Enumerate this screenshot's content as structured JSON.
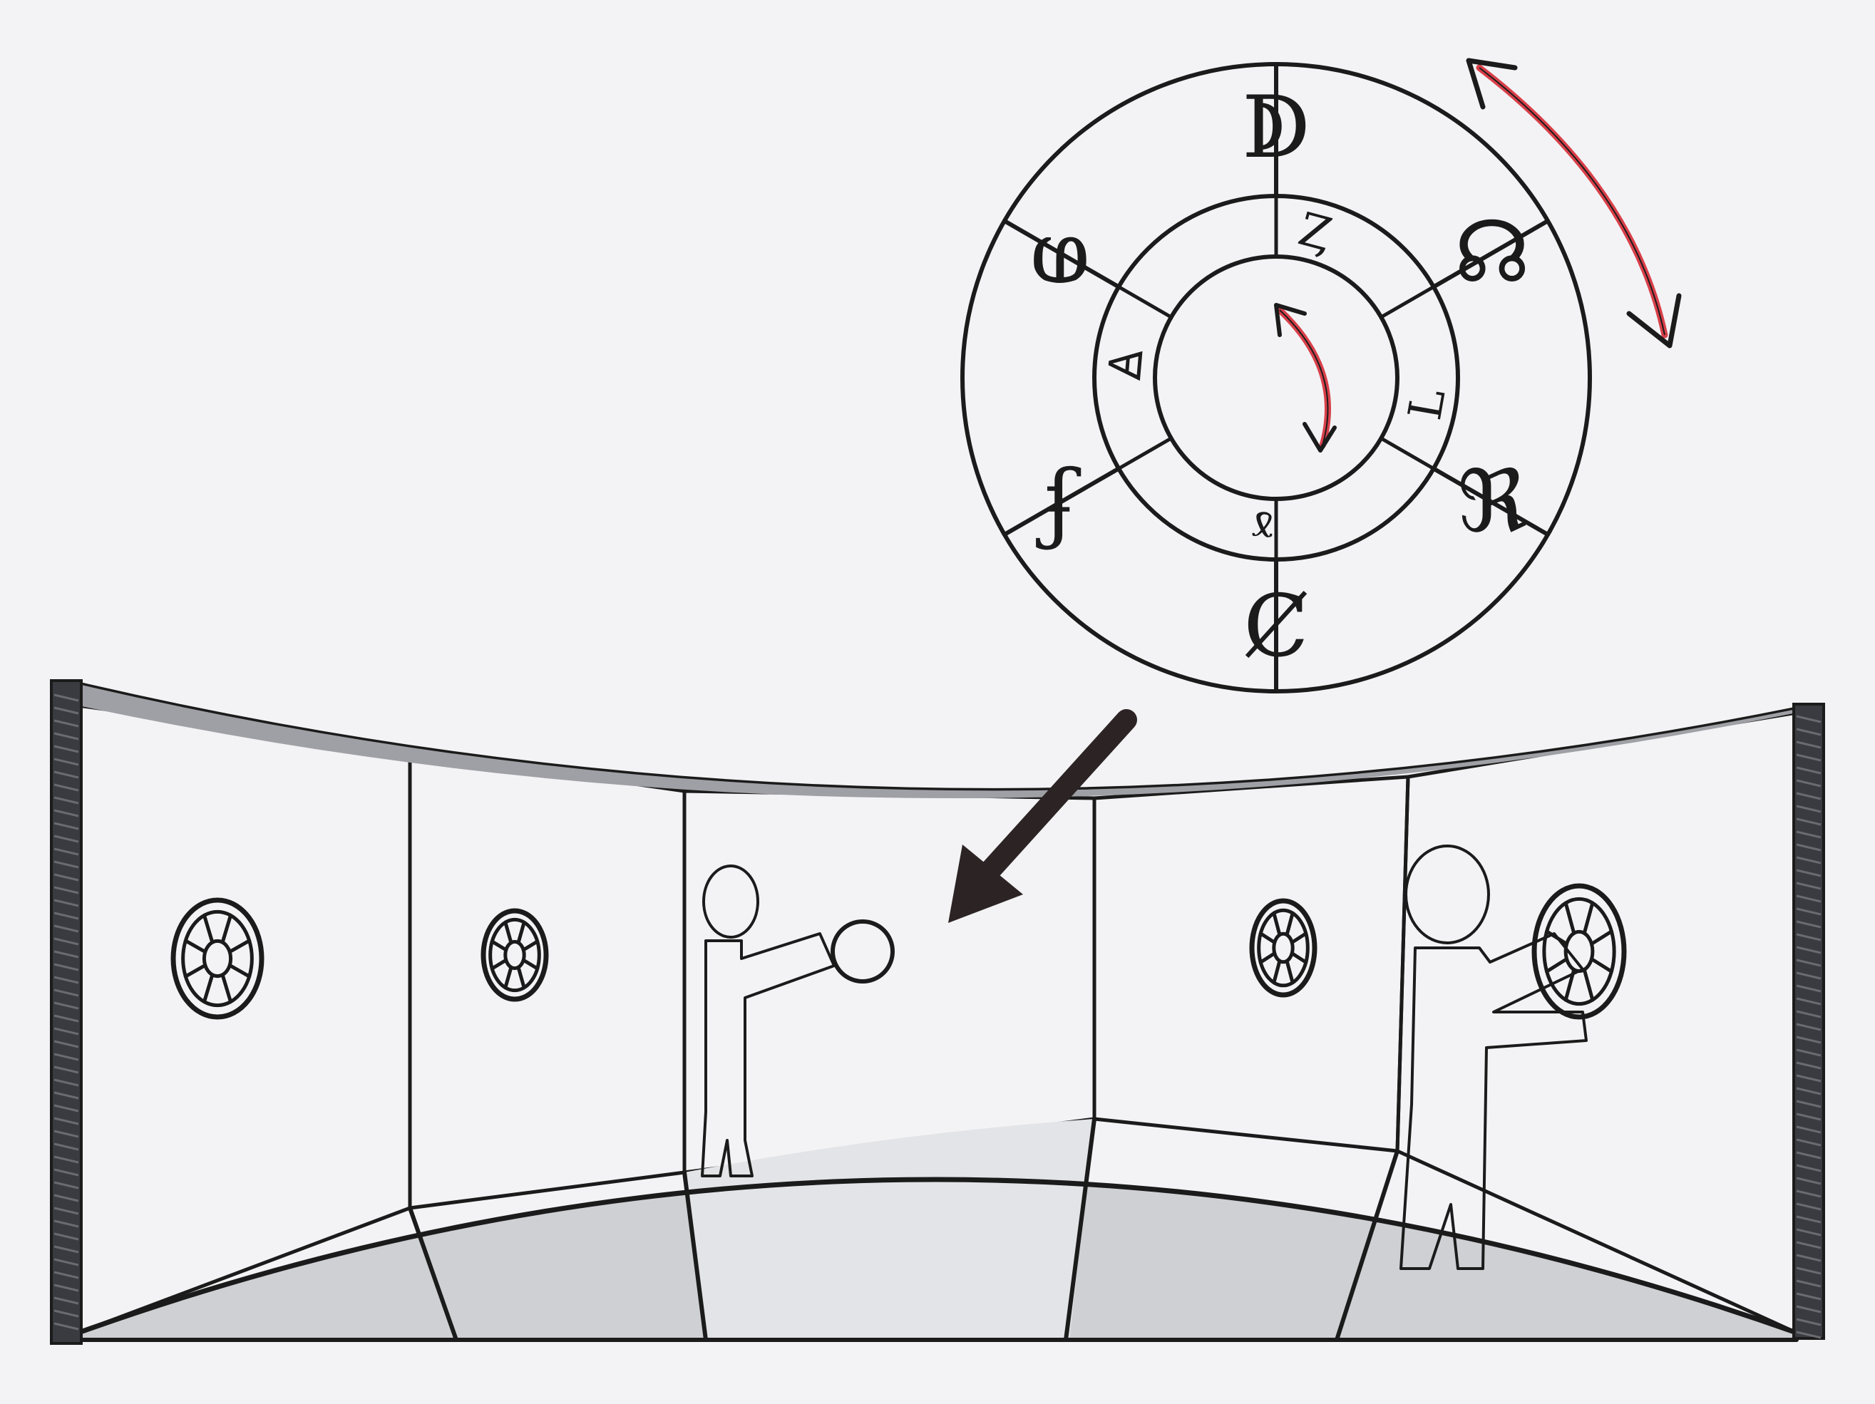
{
  "title": "",
  "colors": {
    "paper": "#f3f3f5",
    "ink": "#1b1b1b",
    "wall_dark": "#b7b8bc",
    "wall_mid": "#c9cbd0",
    "wall_light": "#dedfe2",
    "floor": "#cfd0d4",
    "outer_ring": "#a9aaad",
    "inner_ring": "#d6d6d9",
    "figure": "#93a4b8",
    "rotation_arrow": "#d9404a",
    "pillar": "#3a3b40"
  },
  "wheel": {
    "outer_ring_symbols": [
      "ↁ",
      "☊",
      "ℜ",
      "Ȼ",
      "ʄ",
      "ⱷ"
    ],
    "inner_ring_symbols": [
      "Ȥ",
      "Ꞁ",
      "ɤ",
      "Ꙙ"
    ]
  },
  "icons": {
    "outer_rotation": "double-headed-curved-arrow-icon",
    "inner_rotation": "double-headed-curved-arrow-icon",
    "zoom": "arrow-icon",
    "wall_dial": "dial-wheel-icon",
    "person": "person-figure-icon"
  }
}
